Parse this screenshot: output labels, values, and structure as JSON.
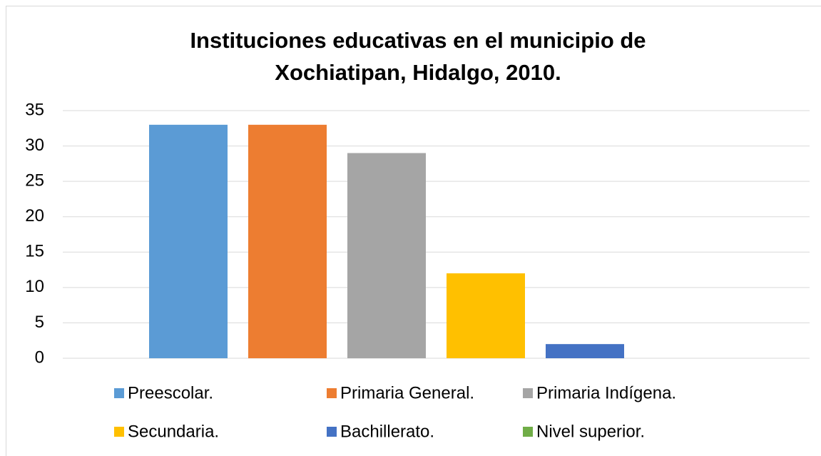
{
  "chart_data": {
    "type": "bar",
    "title": "Instituciones educativas en el municipio de Xochiatipan, Hidalgo, 2010.",
    "categories": [
      null
    ],
    "series": [
      {
        "name": "Preescolar.",
        "color": "#5b9bd5",
        "values": [
          33
        ]
      },
      {
        "name": "Primaria General.",
        "color": "#ed7d31",
        "values": [
          33
        ]
      },
      {
        "name": "Primaria Indígena.",
        "color": "#a5a5a5",
        "values": [
          29
        ]
      },
      {
        "name": "Secundaria.",
        "color": "#ffc000",
        "values": [
          12
        ]
      },
      {
        "name": "Bachillerato.",
        "color": "#4472c4",
        "values": [
          2
        ]
      },
      {
        "name": "Nivel superior.",
        "color": "#70ad47",
        "values": [
          0
        ]
      }
    ],
    "ylim": [
      0,
      35
    ],
    "yticks": [
      0,
      5,
      10,
      15,
      20,
      25,
      30,
      35
    ],
    "grid": true,
    "legend": "bottom"
  }
}
